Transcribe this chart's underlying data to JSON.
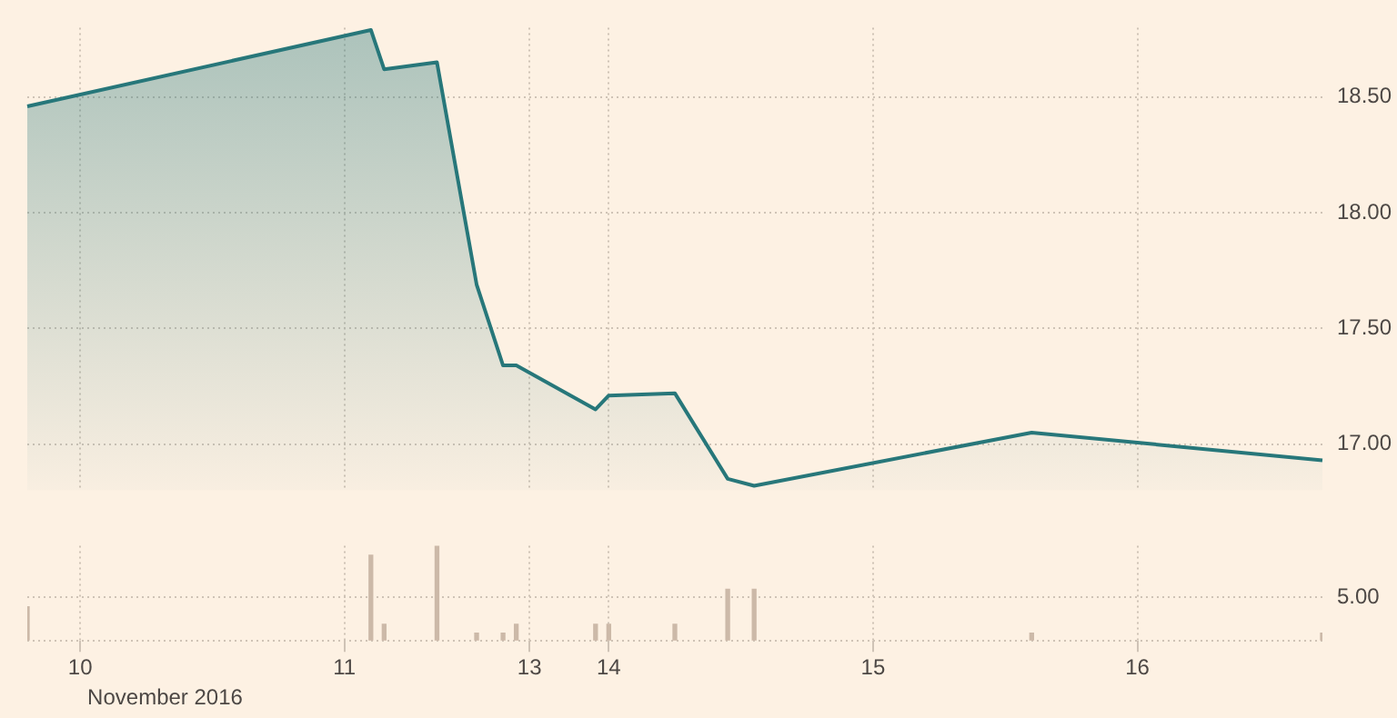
{
  "chart_data": [
    {
      "type": "area",
      "categories": [
        null,
        null,
        null,
        null,
        "10",
        null,
        null,
        null,
        null,
        null,
        null,
        null,
        null,
        null,
        null,
        null,
        null,
        null,
        null,
        null,
        null,
        null,
        null,
        null,
        "11",
        null,
        null,
        null,
        null,
        null,
        null,
        null,
        null,
        null,
        null,
        null,
        null,
        null,
        "13",
        null,
        null,
        null,
        null,
        null,
        "14",
        null,
        null,
        null,
        null,
        null,
        null,
        null,
        null,
        null,
        null,
        null,
        null,
        null,
        null,
        null,
        null,
        null,
        null,
        null,
        "15",
        null,
        null,
        null,
        null,
        null,
        null,
        null,
        null,
        null,
        null,
        null,
        null,
        null,
        null,
        null,
        null,
        null,
        null,
        null,
        "16",
        null,
        null,
        null,
        null,
        null,
        null,
        null,
        null,
        null,
        null,
        null,
        null,
        null,
        null
      ],
      "series": [
        {
          "color": "#27777a",
          "values": [
            18.46,
            null,
            null,
            null,
            null,
            null,
            null,
            null,
            null,
            null,
            null,
            null,
            null,
            null,
            null,
            null,
            null,
            null,
            null,
            null,
            null,
            null,
            null,
            null,
            null,
            null,
            18.79,
            18.62,
            null,
            null,
            null,
            18.65,
            null,
            null,
            17.69,
            null,
            17.34,
            17.34,
            null,
            null,
            null,
            null,
            null,
            17.15,
            17.21,
            null,
            null,
            null,
            null,
            17.22,
            null,
            null,
            null,
            16.85,
            null,
            16.82,
            null,
            null,
            null,
            null,
            null,
            null,
            null,
            null,
            null,
            null,
            null,
            null,
            null,
            null,
            null,
            null,
            null,
            null,
            null,
            null,
            17.05,
            null,
            null,
            null,
            null,
            null,
            null,
            null,
            null,
            null,
            null,
            null,
            null,
            null,
            null,
            null,
            null,
            null,
            null,
            null,
            null,
            null,
            16.93
          ]
        }
      ],
      "ylim": [
        16.8,
        18.8
      ],
      "yticks": [
        {
          "value": 17,
          "label": "17.00"
        },
        {
          "value": 17.5,
          "label": "17.50"
        },
        {
          "value": 18,
          "label": "18.00"
        },
        {
          "value": 18.5,
          "label": "18.50"
        }
      ],
      "grid": true,
      "tick_labels": "y"
    },
    {
      "type": "bar",
      "categories": [
        null,
        null,
        null,
        null,
        "10",
        null,
        null,
        null,
        null,
        null,
        null,
        null,
        null,
        null,
        null,
        null,
        null,
        null,
        null,
        null,
        null,
        null,
        null,
        null,
        "11",
        null,
        null,
        null,
        null,
        null,
        null,
        null,
        null,
        null,
        null,
        null,
        null,
        null,
        "13",
        null,
        null,
        null,
        null,
        null,
        "14",
        null,
        null,
        null,
        null,
        null,
        null,
        null,
        null,
        null,
        null,
        null,
        null,
        null,
        null,
        null,
        null,
        null,
        null,
        null,
        "15",
        null,
        null,
        null,
        null,
        null,
        null,
        null,
        null,
        null,
        null,
        null,
        null,
        null,
        null,
        null,
        null,
        null,
        null,
        null,
        "16",
        null,
        null,
        null,
        null,
        null,
        null,
        null,
        null,
        null,
        null,
        null,
        null,
        null,
        null
      ],
      "values": [
        3.9,
        null,
        null,
        null,
        null,
        null,
        null,
        null,
        null,
        null,
        null,
        null,
        null,
        null,
        null,
        null,
        null,
        null,
        null,
        null,
        null,
        null,
        null,
        null,
        null,
        null,
        9.8,
        1.9,
        null,
        null,
        null,
        10.9,
        null,
        null,
        0.9,
        null,
        0.9,
        1.9,
        null,
        null,
        null,
        null,
        null,
        1.9,
        1.9,
        null,
        null,
        null,
        null,
        1.9,
        null,
        null,
        null,
        5.9,
        null,
        5.9,
        null,
        null,
        null,
        null,
        null,
        null,
        null,
        null,
        null,
        null,
        null,
        null,
        null,
        null,
        null,
        null,
        null,
        null,
        null,
        null,
        0.9,
        null,
        null,
        null,
        null,
        null,
        null,
        null,
        null,
        null,
        null,
        null,
        null,
        null,
        null,
        null,
        null,
        null,
        null,
        null,
        null,
        null,
        0.9
      ],
      "color": "#ccb9a8",
      "ylim": [
        0,
        10.9
      ],
      "yticks": [
        {
          "value": 0,
          "label": null
        },
        {
          "value": 5,
          "label": "5.00"
        }
      ],
      "grid": true,
      "annotations": [
        "November 2016"
      ]
    }
  ]
}
